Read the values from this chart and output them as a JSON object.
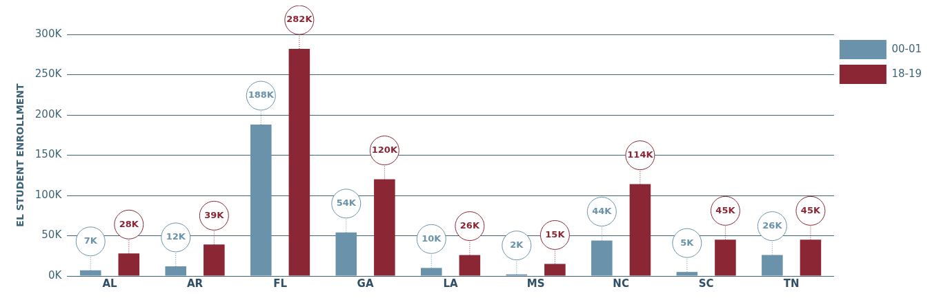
{
  "chart_data": {
    "type": "bar",
    "ylabel": "EL STUDENT ENROLLMENT",
    "categories": [
      "AL",
      "AR",
      "FL",
      "GA",
      "LA",
      "MS",
      "NC",
      "SC",
      "TN"
    ],
    "series": [
      {
        "name": "00-01",
        "color": "#6a93ab",
        "values": [
          7000,
          12000,
          188000,
          54000,
          10000,
          2000,
          44000,
          5000,
          26000
        ],
        "value_labels": [
          "7K",
          "12K",
          "188K",
          "54K",
          "10K",
          "2K",
          "44K",
          "5K",
          "26K"
        ]
      },
      {
        "name": "18-19",
        "color": "#8b2634",
        "values": [
          28000,
          39000,
          282000,
          120000,
          26000,
          15000,
          114000,
          45000,
          45000
        ],
        "value_labels": [
          "28K",
          "39K",
          "282K",
          "120K",
          "26K",
          "15K",
          "114K",
          "45K",
          "45K"
        ]
      }
    ],
    "ylim": [
      0,
      300000
    ],
    "yticks": [
      {
        "value": 0,
        "label": "0K"
      },
      {
        "value": 50000,
        "label": "50K"
      },
      {
        "value": 100000,
        "label": "100K"
      },
      {
        "value": 150000,
        "label": "150K"
      },
      {
        "value": 200000,
        "label": "200K"
      },
      {
        "value": 250000,
        "label": "250K"
      },
      {
        "value": 300000,
        "label": "300K"
      }
    ],
    "grid": "y",
    "legend": "right"
  }
}
